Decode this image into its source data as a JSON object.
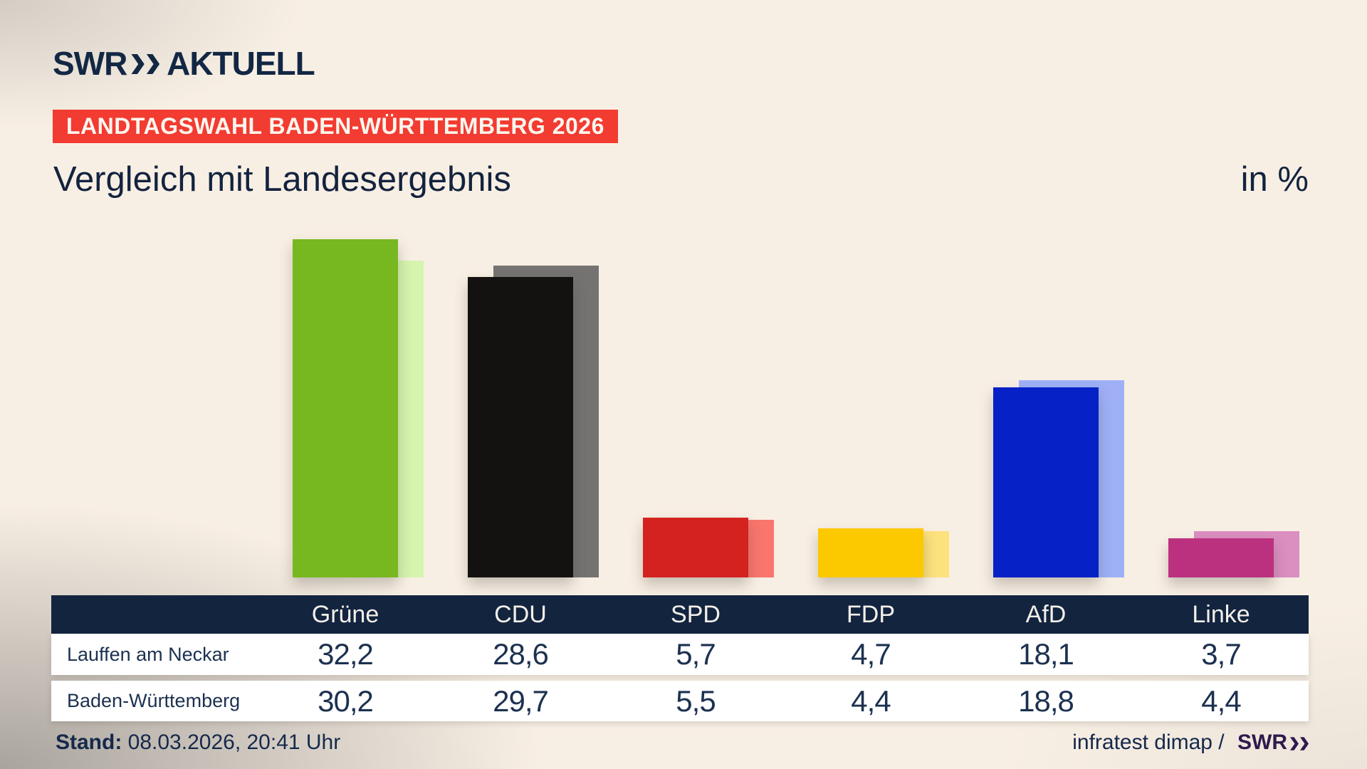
{
  "brand": {
    "logo_main": "SWR",
    "logo_suffix": "AKTUELL",
    "logo_color": "#122744"
  },
  "badge": {
    "label": "LANDTAGSWAHL BADEN-WÜRTTEMBERG 2026",
    "bg_color": "#f23b31"
  },
  "title": "Vergleich mit Landesergebnis",
  "unit_label": "in %",
  "chart_data": {
    "type": "bar",
    "title": "Vergleich mit Landesergebnis",
    "unit": "in %",
    "categories": [
      "Grüne",
      "CDU",
      "SPD",
      "FDP",
      "AfD",
      "Linke"
    ],
    "series": [
      {
        "name": "Lauffen am Neckar",
        "values": [
          32.2,
          28.6,
          5.7,
          4.7,
          18.1,
          3.7
        ]
      },
      {
        "name": "Baden-Württemberg",
        "values": [
          30.2,
          29.7,
          5.5,
          4.4,
          18.8,
          4.4
        ]
      }
    ],
    "ylim": [
      0,
      35
    ],
    "grid": false,
    "legend": "table-below",
    "party_keys": [
      "gruene",
      "cdu",
      "spd",
      "fdp",
      "afd",
      "linke"
    ],
    "colors_main": [
      "#77b821",
      "#141210",
      "#d4231f",
      "#fcc800",
      "#0621c6",
      "#bb3180"
    ],
    "colors_state": [
      "#d6f4ae",
      "#757372",
      "#f9766d",
      "#fde17d",
      "#9fb0f7",
      "#db8ec0"
    ]
  },
  "table": {
    "header_labels": [
      "",
      "Grüne",
      "CDU",
      "SPD",
      "FDP",
      "AfD",
      "Linke"
    ],
    "rows": [
      {
        "label": "Lauffen am Neckar",
        "values": [
          "32,2",
          "28,6",
          "5,7",
          "4,7",
          "18,1",
          "3,7"
        ]
      },
      {
        "label": "Baden-Württemberg",
        "values": [
          "30,2",
          "29,7",
          "5,5",
          "4,4",
          "18,8",
          "4,4"
        ]
      }
    ],
    "header_bg": "#13243f",
    "value_color": "#1c3150"
  },
  "footer": {
    "stand_label": "Stand:",
    "stand_value": "08.03.2026, 20:41 Uhr",
    "source_text": "infratest dimap /",
    "source_logo": "SWR"
  }
}
